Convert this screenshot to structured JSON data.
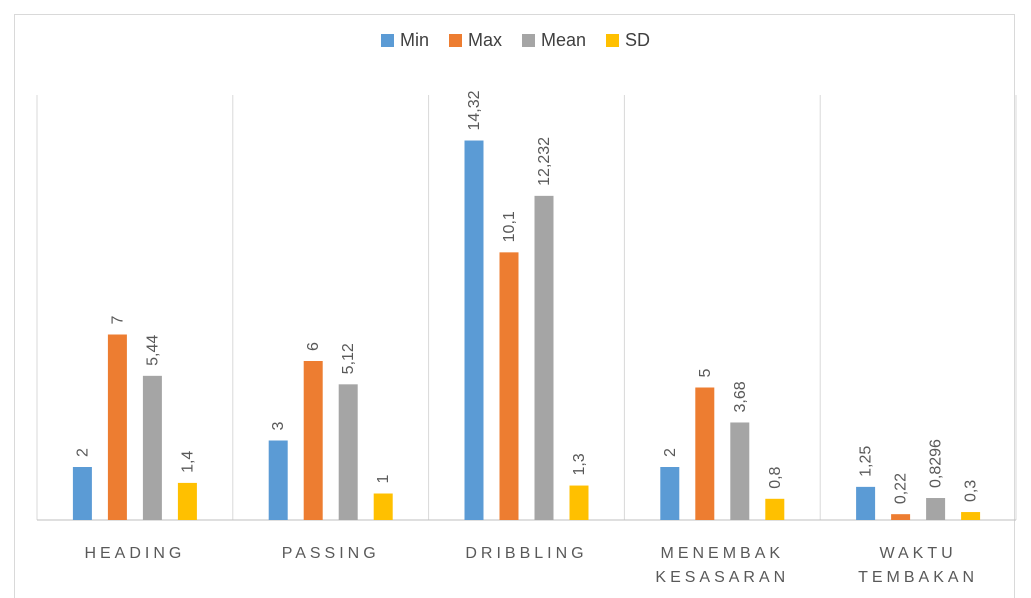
{
  "chart_data": {
    "type": "bar",
    "categories": [
      "HEADING",
      "PASSING",
      "DRIBBLING",
      "MENEMBAK KESASARAN",
      "WAKTU TEMBAKAN"
    ],
    "category_lines": [
      [
        "HEADING"
      ],
      [
        "PASSING"
      ],
      [
        "DRIBBLING"
      ],
      [
        "MENEMBAK",
        "KESASARAN"
      ],
      [
        "WAKTU",
        "TEMBAKAN"
      ]
    ],
    "series": [
      {
        "name": "Min",
        "color": "#5b9bd5",
        "values": [
          2,
          3,
          14.32,
          2,
          1.25
        ],
        "labels": [
          "2",
          "3",
          "14,32",
          "2",
          "1,25"
        ]
      },
      {
        "name": "Max",
        "color": "#ed7d31",
        "values": [
          7,
          6,
          10.1,
          5,
          0.22
        ],
        "labels": [
          "7",
          "6",
          "10,1",
          "5",
          "0,22"
        ]
      },
      {
        "name": "Mean",
        "color": "#a5a5a5",
        "values": [
          5.44,
          5.12,
          12.232,
          3.68,
          0.8296
        ],
        "labels": [
          "5,44",
          "5,12",
          "12,232",
          "3,68",
          "0,8296"
        ]
      },
      {
        "name": "SD",
        "color": "#ffc000",
        "values": [
          1.4,
          1,
          1.3,
          0.8,
          0.3
        ],
        "labels": [
          "1,4",
          "1",
          "1,3",
          "0,8",
          "0,3"
        ]
      }
    ],
    "ylim": [
      0,
      16
    ],
    "grid": "vertical separators",
    "legend": "top"
  }
}
